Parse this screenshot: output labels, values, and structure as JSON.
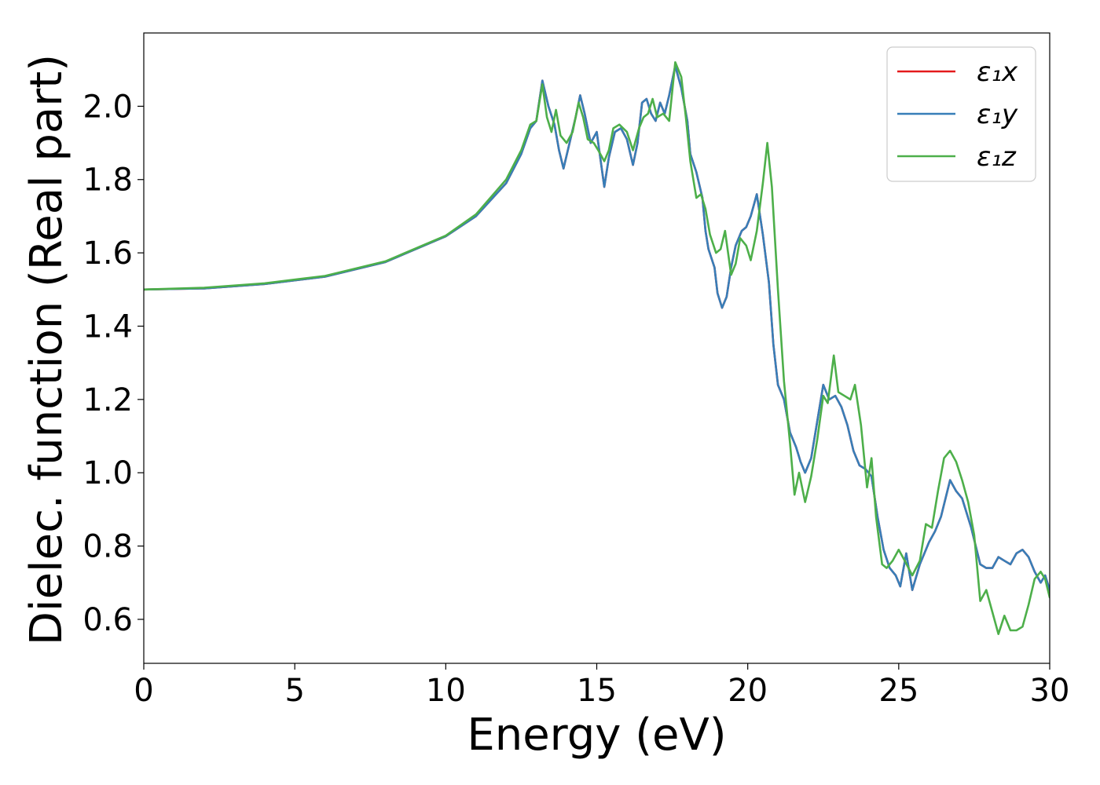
{
  "chart_data": {
    "type": "line",
    "title": "",
    "xlabel": "Energy (eV)",
    "ylabel": "Dielec. function (Real part)",
    "xlim": [
      0,
      30
    ],
    "ylim": [
      0.48,
      2.2
    ],
    "xticks": [
      0,
      5,
      10,
      15,
      20,
      25,
      30
    ],
    "xtick_labels": [
      "0",
      "5",
      "10",
      "15",
      "20",
      "25",
      "30"
    ],
    "yticks": [
      0.6,
      0.8,
      1.0,
      1.2,
      1.4,
      1.6,
      1.8,
      2.0
    ],
    "ytick_labels": [
      "0.6",
      "0.8",
      "1.0",
      "1.2",
      "1.4",
      "1.6",
      "1.8",
      "2.0"
    ],
    "grid": false,
    "legend_position": "top-right",
    "series": [
      {
        "name": "ε₁x",
        "color": "#e41a1c",
        "points": [
          [
            0,
            1.5
          ],
          [
            2,
            1.503
          ],
          [
            4,
            1.515
          ],
          [
            6,
            1.535
          ],
          [
            8,
            1.575
          ],
          [
            10,
            1.645
          ],
          [
            11,
            1.7
          ],
          [
            12,
            1.79
          ],
          [
            12.5,
            1.87
          ],
          [
            12.8,
            1.94
          ],
          [
            13.0,
            1.96
          ],
          [
            13.2,
            2.07
          ],
          [
            13.4,
            2.0
          ],
          [
            13.6,
            1.95
          ],
          [
            13.75,
            1.88
          ],
          [
            13.9,
            1.83
          ],
          [
            14.1,
            1.9
          ],
          [
            14.3,
            1.97
          ],
          [
            14.45,
            2.03
          ],
          [
            14.6,
            1.98
          ],
          [
            14.8,
            1.9
          ],
          [
            15.0,
            1.93
          ],
          [
            15.1,
            1.87
          ],
          [
            15.25,
            1.78
          ],
          [
            15.4,
            1.86
          ],
          [
            15.6,
            1.93
          ],
          [
            15.8,
            1.94
          ],
          [
            16.0,
            1.91
          ],
          [
            16.2,
            1.84
          ],
          [
            16.35,
            1.9
          ],
          [
            16.5,
            2.01
          ],
          [
            16.65,
            2.02
          ],
          [
            16.8,
            1.98
          ],
          [
            16.95,
            1.96
          ],
          [
            17.1,
            2.01
          ],
          [
            17.25,
            1.98
          ],
          [
            17.4,
            2.03
          ],
          [
            17.6,
            2.11
          ],
          [
            17.8,
            2.05
          ],
          [
            18.0,
            1.96
          ],
          [
            18.1,
            1.87
          ],
          [
            18.3,
            1.82
          ],
          [
            18.5,
            1.75
          ],
          [
            18.6,
            1.66
          ],
          [
            18.7,
            1.61
          ],
          [
            18.9,
            1.56
          ],
          [
            19.0,
            1.49
          ],
          [
            19.15,
            1.45
          ],
          [
            19.3,
            1.48
          ],
          [
            19.45,
            1.56
          ],
          [
            19.6,
            1.62
          ],
          [
            19.8,
            1.66
          ],
          [
            19.95,
            1.67
          ],
          [
            20.1,
            1.7
          ],
          [
            20.3,
            1.76
          ],
          [
            20.5,
            1.65
          ],
          [
            20.7,
            1.52
          ],
          [
            20.85,
            1.35
          ],
          [
            21.0,
            1.24
          ],
          [
            21.2,
            1.2
          ],
          [
            21.4,
            1.11
          ],
          [
            21.6,
            1.07
          ],
          [
            21.75,
            1.03
          ],
          [
            21.9,
            1.0
          ],
          [
            22.1,
            1.04
          ],
          [
            22.3,
            1.14
          ],
          [
            22.5,
            1.24
          ],
          [
            22.7,
            1.2
          ],
          [
            22.9,
            1.21
          ],
          [
            23.1,
            1.18
          ],
          [
            23.3,
            1.13
          ],
          [
            23.5,
            1.06
          ],
          [
            23.7,
            1.02
          ],
          [
            23.9,
            1.01
          ],
          [
            24.1,
            0.99
          ],
          [
            24.3,
            0.88
          ],
          [
            24.5,
            0.79
          ],
          [
            24.7,
            0.74
          ],
          [
            24.9,
            0.72
          ],
          [
            25.05,
            0.69
          ],
          [
            25.25,
            0.78
          ],
          [
            25.45,
            0.68
          ],
          [
            25.7,
            0.75
          ],
          [
            26.0,
            0.81
          ],
          [
            26.2,
            0.84
          ],
          [
            26.4,
            0.88
          ],
          [
            26.55,
            0.93
          ],
          [
            26.7,
            0.98
          ],
          [
            26.9,
            0.95
          ],
          [
            27.1,
            0.93
          ],
          [
            27.4,
            0.85
          ],
          [
            27.7,
            0.75
          ],
          [
            27.9,
            0.74
          ],
          [
            28.1,
            0.74
          ],
          [
            28.3,
            0.77
          ],
          [
            28.5,
            0.76
          ],
          [
            28.7,
            0.75
          ],
          [
            28.9,
            0.78
          ],
          [
            29.1,
            0.79
          ],
          [
            29.3,
            0.77
          ],
          [
            29.5,
            0.73
          ],
          [
            29.7,
            0.7
          ],
          [
            29.85,
            0.72
          ],
          [
            30.0,
            0.68
          ]
        ]
      },
      {
        "name": "ε₁y",
        "color": "#377eb8",
        "points": [
          [
            0,
            1.5
          ],
          [
            2,
            1.503
          ],
          [
            4,
            1.515
          ],
          [
            6,
            1.535
          ],
          [
            8,
            1.575
          ],
          [
            10,
            1.645
          ],
          [
            11,
            1.7
          ],
          [
            12,
            1.79
          ],
          [
            12.5,
            1.87
          ],
          [
            12.8,
            1.94
          ],
          [
            13.0,
            1.96
          ],
          [
            13.2,
            2.07
          ],
          [
            13.4,
            2.0
          ],
          [
            13.6,
            1.95
          ],
          [
            13.75,
            1.88
          ],
          [
            13.9,
            1.83
          ],
          [
            14.1,
            1.9
          ],
          [
            14.3,
            1.97
          ],
          [
            14.45,
            2.03
          ],
          [
            14.6,
            1.98
          ],
          [
            14.8,
            1.9
          ],
          [
            15.0,
            1.93
          ],
          [
            15.1,
            1.87
          ],
          [
            15.25,
            1.78
          ],
          [
            15.4,
            1.86
          ],
          [
            15.6,
            1.93
          ],
          [
            15.8,
            1.94
          ],
          [
            16.0,
            1.91
          ],
          [
            16.2,
            1.84
          ],
          [
            16.35,
            1.9
          ],
          [
            16.5,
            2.01
          ],
          [
            16.65,
            2.02
          ],
          [
            16.8,
            1.98
          ],
          [
            16.95,
            1.96
          ],
          [
            17.1,
            2.01
          ],
          [
            17.25,
            1.98
          ],
          [
            17.4,
            2.03
          ],
          [
            17.6,
            2.11
          ],
          [
            17.8,
            2.05
          ],
          [
            18.0,
            1.96
          ],
          [
            18.1,
            1.87
          ],
          [
            18.3,
            1.82
          ],
          [
            18.5,
            1.75
          ],
          [
            18.6,
            1.66
          ],
          [
            18.7,
            1.61
          ],
          [
            18.9,
            1.56
          ],
          [
            19.0,
            1.49
          ],
          [
            19.15,
            1.45
          ],
          [
            19.3,
            1.48
          ],
          [
            19.45,
            1.56
          ],
          [
            19.6,
            1.62
          ],
          [
            19.8,
            1.66
          ],
          [
            19.95,
            1.67
          ],
          [
            20.1,
            1.7
          ],
          [
            20.3,
            1.76
          ],
          [
            20.5,
            1.65
          ],
          [
            20.7,
            1.52
          ],
          [
            20.85,
            1.35
          ],
          [
            21.0,
            1.24
          ],
          [
            21.2,
            1.2
          ],
          [
            21.4,
            1.11
          ],
          [
            21.6,
            1.07
          ],
          [
            21.75,
            1.03
          ],
          [
            21.9,
            1.0
          ],
          [
            22.1,
            1.04
          ],
          [
            22.3,
            1.14
          ],
          [
            22.5,
            1.24
          ],
          [
            22.7,
            1.2
          ],
          [
            22.9,
            1.21
          ],
          [
            23.1,
            1.18
          ],
          [
            23.3,
            1.13
          ],
          [
            23.5,
            1.06
          ],
          [
            23.7,
            1.02
          ],
          [
            23.9,
            1.01
          ],
          [
            24.1,
            0.99
          ],
          [
            24.3,
            0.88
          ],
          [
            24.5,
            0.79
          ],
          [
            24.7,
            0.74
          ],
          [
            24.9,
            0.72
          ],
          [
            25.05,
            0.69
          ],
          [
            25.25,
            0.78
          ],
          [
            25.45,
            0.68
          ],
          [
            25.7,
            0.75
          ],
          [
            26.0,
            0.81
          ],
          [
            26.2,
            0.84
          ],
          [
            26.4,
            0.88
          ],
          [
            26.55,
            0.93
          ],
          [
            26.7,
            0.98
          ],
          [
            26.9,
            0.95
          ],
          [
            27.1,
            0.93
          ],
          [
            27.4,
            0.85
          ],
          [
            27.7,
            0.75
          ],
          [
            27.9,
            0.74
          ],
          [
            28.1,
            0.74
          ],
          [
            28.3,
            0.77
          ],
          [
            28.5,
            0.76
          ],
          [
            28.7,
            0.75
          ],
          [
            28.9,
            0.78
          ],
          [
            29.1,
            0.79
          ],
          [
            29.3,
            0.77
          ],
          [
            29.5,
            0.73
          ],
          [
            29.7,
            0.7
          ],
          [
            29.85,
            0.72
          ],
          [
            30.0,
            0.68
          ]
        ]
      },
      {
        "name": "ε₁z",
        "color": "#4daf4a",
        "points": [
          [
            0,
            1.5
          ],
          [
            2,
            1.505
          ],
          [
            4,
            1.517
          ],
          [
            6,
            1.537
          ],
          [
            8,
            1.577
          ],
          [
            10,
            1.647
          ],
          [
            11,
            1.705
          ],
          [
            12,
            1.8
          ],
          [
            12.5,
            1.88
          ],
          [
            12.8,
            1.95
          ],
          [
            13.0,
            1.96
          ],
          [
            13.2,
            2.06
          ],
          [
            13.35,
            1.97
          ],
          [
            13.5,
            1.93
          ],
          [
            13.65,
            1.99
          ],
          [
            13.8,
            1.92
          ],
          [
            14.0,
            1.9
          ],
          [
            14.2,
            1.93
          ],
          [
            14.4,
            2.01
          ],
          [
            14.55,
            1.97
          ],
          [
            14.7,
            1.91
          ],
          [
            14.9,
            1.9
          ],
          [
            15.05,
            1.88
          ],
          [
            15.25,
            1.85
          ],
          [
            15.4,
            1.88
          ],
          [
            15.55,
            1.94
          ],
          [
            15.75,
            1.95
          ],
          [
            16.0,
            1.93
          ],
          [
            16.2,
            1.88
          ],
          [
            16.4,
            1.94
          ],
          [
            16.55,
            1.97
          ],
          [
            16.7,
            1.98
          ],
          [
            16.85,
            2.02
          ],
          [
            17.0,
            1.97
          ],
          [
            17.2,
            1.98
          ],
          [
            17.4,
            1.96
          ],
          [
            17.6,
            2.12
          ],
          [
            17.8,
            2.08
          ],
          [
            17.95,
            1.97
          ],
          [
            18.1,
            1.85
          ],
          [
            18.3,
            1.75
          ],
          [
            18.45,
            1.76
          ],
          [
            18.6,
            1.72
          ],
          [
            18.75,
            1.65
          ],
          [
            18.95,
            1.6
          ],
          [
            19.1,
            1.61
          ],
          [
            19.25,
            1.66
          ],
          [
            19.45,
            1.54
          ],
          [
            19.6,
            1.57
          ],
          [
            19.75,
            1.64
          ],
          [
            19.95,
            1.62
          ],
          [
            20.1,
            1.58
          ],
          [
            20.3,
            1.66
          ],
          [
            20.5,
            1.79
          ],
          [
            20.65,
            1.9
          ],
          [
            20.8,
            1.78
          ],
          [
            21.0,
            1.5
          ],
          [
            21.2,
            1.25
          ],
          [
            21.4,
            1.08
          ],
          [
            21.55,
            0.94
          ],
          [
            21.7,
            1.0
          ],
          [
            21.9,
            0.92
          ],
          [
            22.1,
            0.99
          ],
          [
            22.3,
            1.09
          ],
          [
            22.5,
            1.21
          ],
          [
            22.65,
            1.19
          ],
          [
            22.85,
            1.32
          ],
          [
            23.0,
            1.22
          ],
          [
            23.2,
            1.21
          ],
          [
            23.4,
            1.2
          ],
          [
            23.55,
            1.24
          ],
          [
            23.75,
            1.13
          ],
          [
            23.95,
            0.96
          ],
          [
            24.1,
            1.04
          ],
          [
            24.25,
            0.88
          ],
          [
            24.45,
            0.75
          ],
          [
            24.6,
            0.74
          ],
          [
            24.8,
            0.76
          ],
          [
            25.0,
            0.79
          ],
          [
            25.2,
            0.76
          ],
          [
            25.45,
            0.72
          ],
          [
            25.7,
            0.76
          ],
          [
            25.9,
            0.86
          ],
          [
            26.1,
            0.85
          ],
          [
            26.3,
            0.95
          ],
          [
            26.5,
            1.04
          ],
          [
            26.7,
            1.06
          ],
          [
            26.9,
            1.03
          ],
          [
            27.1,
            0.98
          ],
          [
            27.3,
            0.92
          ],
          [
            27.5,
            0.83
          ],
          [
            27.7,
            0.65
          ],
          [
            27.9,
            0.68
          ],
          [
            28.1,
            0.62
          ],
          [
            28.3,
            0.56
          ],
          [
            28.5,
            0.61
          ],
          [
            28.7,
            0.57
          ],
          [
            28.9,
            0.57
          ],
          [
            29.1,
            0.58
          ],
          [
            29.3,
            0.64
          ],
          [
            29.5,
            0.71
          ],
          [
            29.7,
            0.73
          ],
          [
            29.85,
            0.71
          ],
          [
            30.0,
            0.66
          ]
        ]
      }
    ]
  }
}
